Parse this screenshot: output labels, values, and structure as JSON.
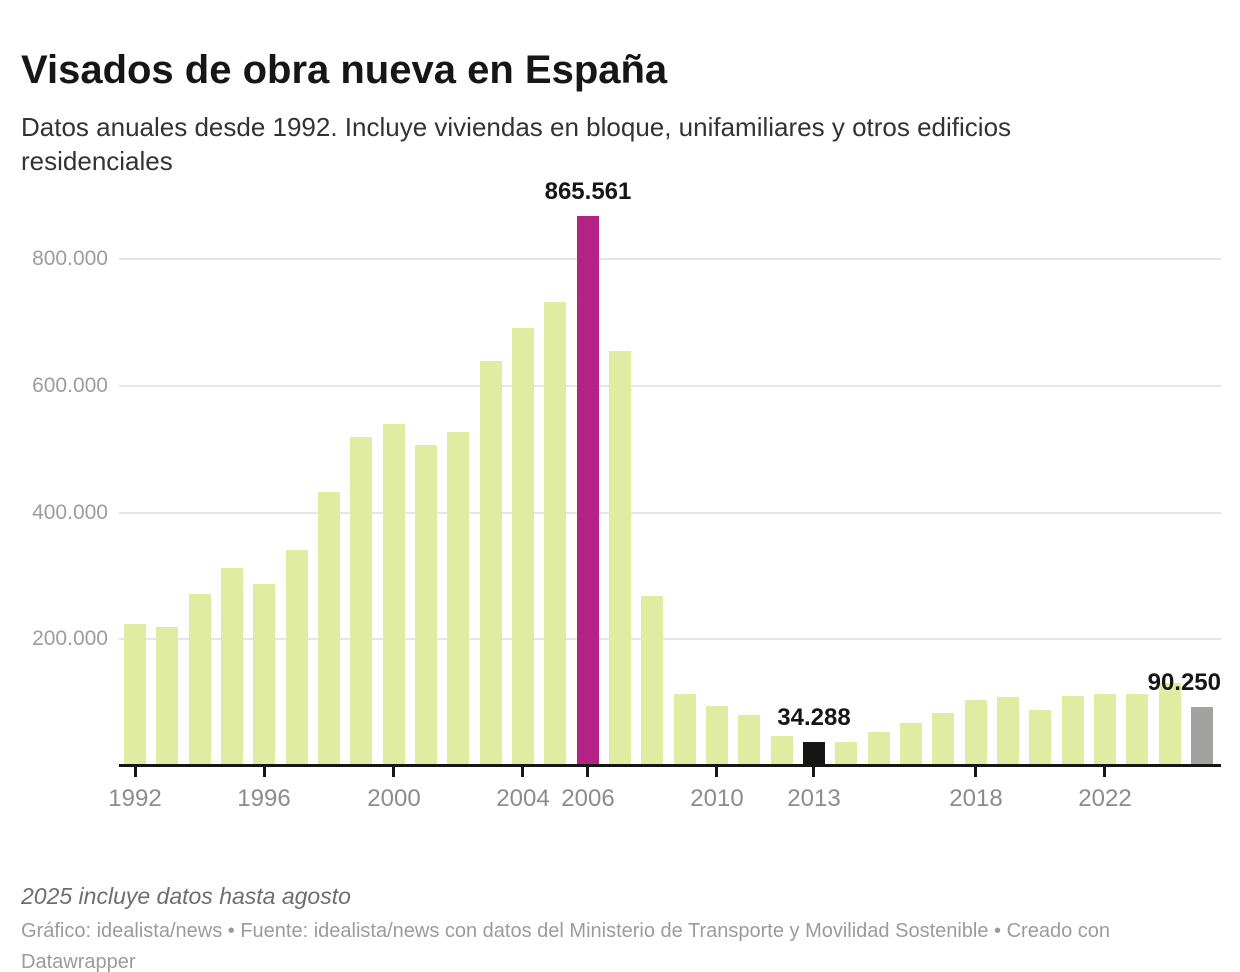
{
  "header": {
    "title": "Visados de obra nueva en España",
    "subtitle": "Datos anuales desde 1992. Incluye viviendas en bloque, unifamiliares y otros edificios residenciales"
  },
  "chart_data": {
    "type": "bar",
    "title": "Visados de obra nueva en España",
    "subtitle": "Datos anuales desde 1992. Incluye viviendas en bloque, unifamiliares y otros edificios residenciales",
    "xlabel": "",
    "ylabel": "",
    "ylim": [
      0,
      880000
    ],
    "grid": true,
    "legend": "none",
    "categories": [
      1992,
      1993,
      1994,
      1995,
      1996,
      1997,
      1998,
      1999,
      2000,
      2001,
      2002,
      2003,
      2004,
      2005,
      2006,
      2007,
      2008,
      2009,
      2010,
      2011,
      2012,
      2013,
      2014,
      2015,
      2016,
      2017,
      2018,
      2019,
      2020,
      2021,
      2022,
      2023,
      2024,
      2025
    ],
    "values": [
      221000,
      216000,
      269000,
      310000,
      284000,
      338000,
      430000,
      516000,
      537000,
      503000,
      524000,
      636000,
      688000,
      730000,
      865561,
      652000,
      265000,
      111000,
      92000,
      78000,
      44000,
      34288,
      35000,
      50000,
      64000,
      81000,
      101000,
      106000,
      86000,
      108000,
      110000,
      111000,
      128000,
      90250
    ],
    "y_ticks": [
      {
        "value": 200000,
        "label": "200.000"
      },
      {
        "value": 400000,
        "label": "400.000"
      },
      {
        "value": 600000,
        "label": "600.000"
      },
      {
        "value": 800000,
        "label": "800.000"
      }
    ],
    "x_ticks": [
      {
        "year": 1992,
        "label": "1992"
      },
      {
        "year": 1996,
        "label": "1996"
      },
      {
        "year": 2000,
        "label": "2000"
      },
      {
        "year": 2004,
        "label": "2004"
      },
      {
        "year": 2006,
        "label": "2006"
      },
      {
        "year": 2010,
        "label": "2010"
      },
      {
        "year": 2013,
        "label": "2013"
      },
      {
        "year": 2018,
        "label": "2018"
      },
      {
        "year": 2022,
        "label": "2022"
      }
    ],
    "bar_colors": {
      "default": "#dfeca2",
      "2006": "#b22383",
      "2013": "#161615",
      "2025": "#a2a2a0"
    },
    "annotations": [
      {
        "year": 2006,
        "value": 865561,
        "label": "865.561",
        "align": "center"
      },
      {
        "year": 2013,
        "value": 34288,
        "label": "34.288",
        "align": "center"
      },
      {
        "year": 2025,
        "value": 90250,
        "label": "90.250",
        "align": "right"
      }
    ]
  },
  "footer": {
    "note": "2025 incluye datos hasta agosto",
    "byline": "Gráfico: idealista/news • Fuente: idealista/news con datos del Ministerio de Transporte y Movilidad Sostenible • Creado con Datawrapper"
  },
  "colors": {
    "background": "#ffffff",
    "bar_default": "#dfeca2",
    "bar_highlight_2006": "#b22383",
    "bar_highlight_2013": "#161615",
    "bar_highlight_2025": "#a2a2a0",
    "gridline": "#e6e6e6",
    "axis": "#161616",
    "axis_label": "#8c8c8c",
    "y_label": "#9d9d9d",
    "text": "#161616",
    "subtitle_text": "#333333",
    "note_text": "#6e6e6e",
    "byline_text": "#9b9b9b"
  }
}
